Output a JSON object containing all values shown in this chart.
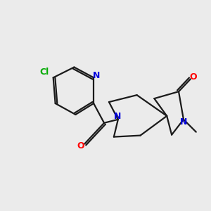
{
  "background_color": "#ebebeb",
  "bond_color": "#1a1a1a",
  "nitrogen_color": "#0000dd",
  "oxygen_color": "#ff0000",
  "chlorine_color": "#00aa00",
  "line_width": 1.6,
  "figsize": [
    3.0,
    3.0
  ],
  "dpi": 100,
  "xlim": [
    0,
    10
  ],
  "ylim": [
    0,
    10
  ]
}
